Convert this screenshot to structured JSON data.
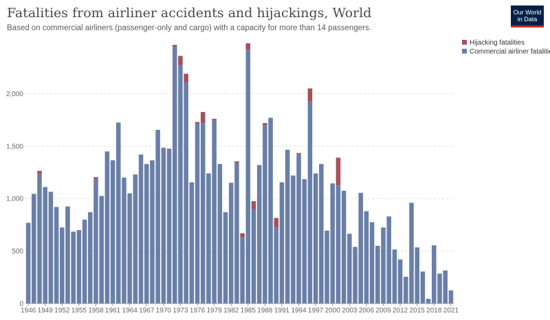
{
  "header": {
    "title": "Fatalities from airliner accidents and hijackings, World",
    "subtitle": "Based on commercial airliners (passenger-only and cargo) with a capacity for more than 14 passengers."
  },
  "logo": {
    "line1": "Our World",
    "line2": "in Data"
  },
  "colors": {
    "commercial": "#6a7fa7",
    "hijacking": "#a3525a",
    "grid": "#dddddd",
    "axis": "#999999"
  },
  "chart_data": {
    "type": "bar",
    "stacked": true,
    "title": "Fatalities from airliner accidents and hijackings, World",
    "subtitle": "Based on commercial airliners (passenger-only and cargo) with a capacity for more than 14 passengers.",
    "ylim": [
      0,
      2500
    ],
    "yticks": [
      0,
      500,
      1000,
      1500,
      2000
    ],
    "ytick_labels": [
      "0",
      "500",
      "1,000",
      "1,500",
      "2,000"
    ],
    "xtick_labels": [
      "1946",
      "1949",
      "1952",
      "1955",
      "1958",
      "1961",
      "1964",
      "1967",
      "1970",
      "1973",
      "1976",
      "1979",
      "1982",
      "1985",
      "1988",
      "1991",
      "1994",
      "1997",
      "2000",
      "2003",
      "2006",
      "2009",
      "2012",
      "2015",
      "2018",
      "2021"
    ],
    "grid": true,
    "legend_position": "top-right",
    "x": [
      1946,
      1947,
      1948,
      1949,
      1950,
      1951,
      1952,
      1953,
      1954,
      1955,
      1956,
      1957,
      1958,
      1959,
      1960,
      1961,
      1962,
      1963,
      1964,
      1965,
      1966,
      1967,
      1968,
      1969,
      1970,
      1971,
      1972,
      1973,
      1974,
      1975,
      1976,
      1977,
      1978,
      1979,
      1980,
      1981,
      1982,
      1983,
      1984,
      1985,
      1986,
      1987,
      1988,
      1989,
      1990,
      1991,
      1992,
      1993,
      1994,
      1995,
      1996,
      1997,
      1998,
      1999,
      2000,
      2001,
      2002,
      2003,
      2004,
      2005,
      2006,
      2007,
      2008,
      2009,
      2010,
      2011,
      2012,
      2013,
      2014,
      2015,
      2016,
      2017,
      2018,
      2019,
      2020,
      2021
    ],
    "series": [
      {
        "name": "Hijacking fatalities",
        "values": [
          0,
          0,
          25,
          0,
          0,
          0,
          0,
          0,
          0,
          0,
          0,
          0,
          15,
          0,
          0,
          0,
          0,
          0,
          0,
          0,
          0,
          0,
          0,
          0,
          0,
          10,
          20,
          90,
          85,
          0,
          15,
          105,
          0,
          15,
          0,
          0,
          10,
          15,
          40,
          60,
          75,
          0,
          20,
          0,
          90,
          0,
          0,
          0,
          10,
          0,
          125,
          0,
          0,
          0,
          0,
          265,
          0,
          0,
          0,
          0,
          0,
          0,
          0,
          0,
          0,
          0,
          0,
          0,
          0,
          0,
          0,
          0,
          0,
          0,
          0,
          0
        ]
      },
      {
        "name": "Commercial airliner fatalities",
        "values": [
          770,
          1045,
          1240,
          1110,
          1065,
          920,
          725,
          925,
          685,
          700,
          800,
          870,
          1190,
          1025,
          1450,
          1365,
          1725,
          1200,
          1050,
          1230,
          1420,
          1330,
          1365,
          1655,
          1485,
          1465,
          2445,
          2270,
          2105,
          1155,
          1715,
          1720,
          1240,
          1745,
          1330,
          870,
          1140,
          1340,
          630,
          2420,
          900,
          1320,
          1700,
          1770,
          725,
          1155,
          1465,
          1220,
          1425,
          1185,
          1925,
          1240,
          1330,
          695,
          1145,
          1125,
          1075,
          665,
          540,
          1055,
          880,
          775,
          550,
          725,
          830,
          515,
          420,
          255,
          960,
          535,
          305,
          45,
          555,
          285,
          315,
          125
        ]
      }
    ]
  }
}
